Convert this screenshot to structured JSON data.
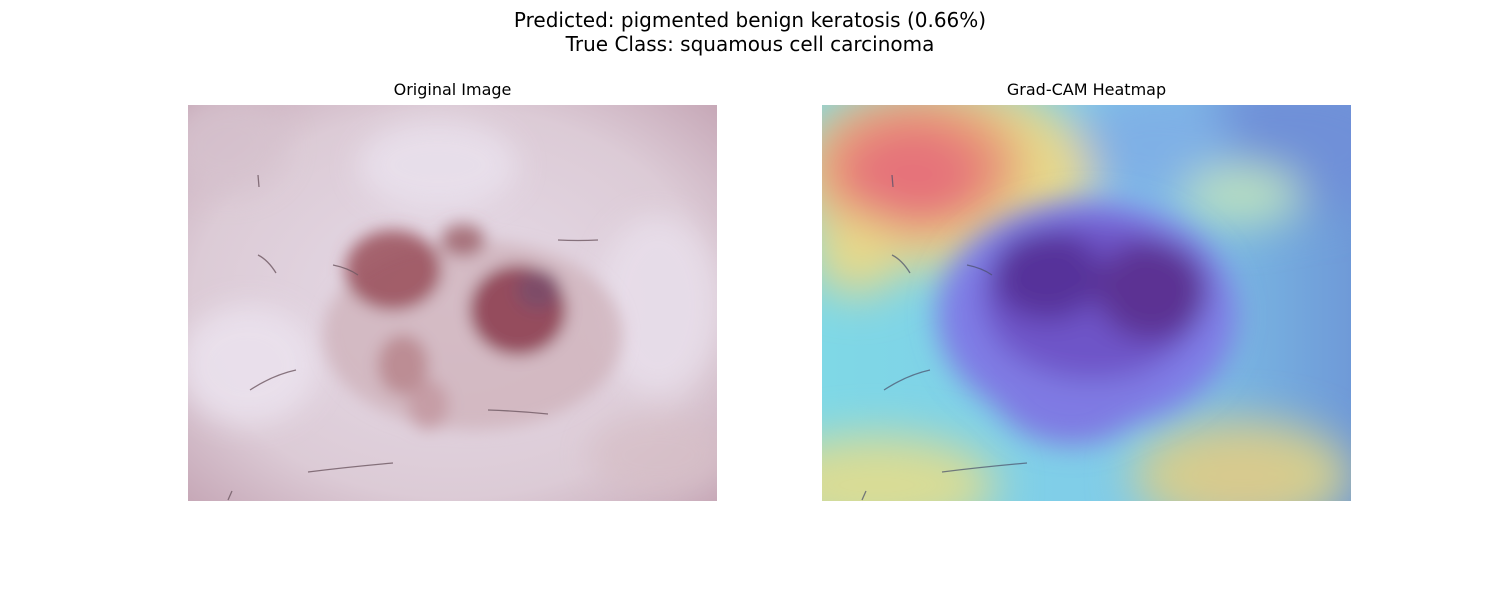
{
  "figure": {
    "title_line1": "Predicted: pigmented benign keratosis (0.66%)",
    "title_line2": "True Class: squamous cell carcinoma"
  },
  "panels": [
    {
      "title": "Original Image",
      "content": "dermoscopy image of skin lesion"
    },
    {
      "title": "Grad-CAM Heatmap",
      "content": "Grad-CAM heatmap overlay on dermoscopy image"
    }
  ]
}
